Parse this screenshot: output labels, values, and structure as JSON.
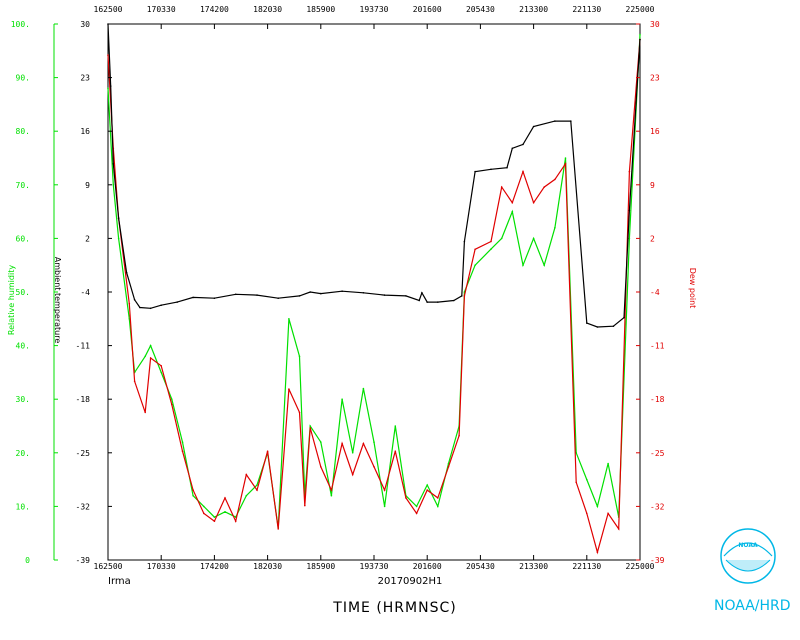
{
  "chart_data": {
    "type": "line",
    "title": "20170902H1",
    "storm_name": "Irma",
    "xlabel": "TIME (HRMNSC)",
    "x_ticks": [
      "162500",
      "170330",
      "174200",
      "182030",
      "185900",
      "193730",
      "201600",
      "205430",
      "213300",
      "221130",
      "225000"
    ],
    "xlim": [
      "162500",
      "225000"
    ],
    "axes": {
      "rh": {
        "label": "Relative humidity",
        "color": "#00e000",
        "ticks": [
          "0",
          "10.",
          "20.",
          "30.",
          "40.",
          "50.",
          "60.",
          "70.",
          "80.",
          "90.",
          "100."
        ],
        "ylim": [
          0,
          100
        ]
      },
      "temp": {
        "label": "Ambient temperature",
        "color": "#000000",
        "ticks": [
          "-39",
          "-32",
          "-25",
          "-18",
          "-11",
          "-4",
          "2",
          "9",
          "16",
          "23",
          "30"
        ],
        "ylim": [
          -39,
          30
        ]
      },
      "dew": {
        "label": "Dew point",
        "color": "#e00000",
        "ticks": [
          "-39",
          "-32",
          "-25",
          "-18",
          "-11",
          "-4",
          "2",
          "9",
          "16",
          "23",
          "30"
        ],
        "ylim": [
          -39,
          30
        ]
      }
    },
    "series": [
      {
        "name": "Ambient temperature",
        "color": "#000000",
        "x": [
          0.0,
          0.005,
          0.01,
          0.02,
          0.035,
          0.05,
          0.06,
          0.08,
          0.1,
          0.13,
          0.16,
          0.2,
          0.24,
          0.28,
          0.32,
          0.36,
          0.38,
          0.4,
          0.44,
          0.48,
          0.52,
          0.56,
          0.585,
          0.59,
          0.6,
          0.62,
          0.65,
          0.665,
          0.67,
          0.69,
          0.72,
          0.75,
          0.76,
          0.78,
          0.8,
          0.84,
          0.87,
          0.9,
          0.92,
          0.95,
          0.97,
          0.98,
          1.0
        ],
        "y": [
          30,
          22,
          12,
          5,
          -2,
          -5.5,
          -6.5,
          -6.6,
          -6.2,
          -5.8,
          -5.2,
          -5.3,
          -4.8,
          -4.9,
          -5.3,
          -5.0,
          -4.5,
          -4.7,
          -4.4,
          -4.6,
          -4.9,
          -5.0,
          -5.6,
          -4.6,
          -5.8,
          -5.8,
          -5.6,
          -5.0,
          2,
          11,
          11.3,
          11.5,
          14,
          14.5,
          16.8,
          17.5,
          17.5,
          -8.5,
          -9.0,
          -8.9,
          -7.8,
          6,
          28
        ]
      },
      {
        "name": "Dew point",
        "color": "#e00000",
        "x": [
          0.0,
          0.01,
          0.02,
          0.04,
          0.05,
          0.07,
          0.08,
          0.1,
          0.12,
          0.14,
          0.16,
          0.18,
          0.2,
          0.22,
          0.24,
          0.26,
          0.28,
          0.3,
          0.32,
          0.34,
          0.36,
          0.37,
          0.38,
          0.4,
          0.42,
          0.44,
          0.46,
          0.48,
          0.5,
          0.52,
          0.54,
          0.56,
          0.58,
          0.6,
          0.62,
          0.64,
          0.66,
          0.67,
          0.69,
          0.72,
          0.74,
          0.76,
          0.78,
          0.8,
          0.82,
          0.84,
          0.86,
          0.88,
          0.9,
          0.92,
          0.94,
          0.96,
          0.98,
          1.0
        ],
        "y": [
          26,
          14,
          5,
          -6,
          -16,
          -20,
          -13,
          -14,
          -19,
          -25,
          -30,
          -33,
          -34,
          -31,
          -34,
          -28,
          -30,
          -25,
          -35,
          -17,
          -20,
          -32,
          -22,
          -27,
          -30,
          -24,
          -28,
          -24,
          -27,
          -30,
          -25,
          -31,
          -33,
          -30,
          -31,
          -27,
          -23,
          -5,
          1,
          2,
          9,
          7,
          11,
          7,
          9,
          10,
          12,
          -29,
          -33,
          -38,
          -33,
          -35,
          11,
          28
        ]
      },
      {
        "name": "Relative humidity",
        "color": "#00e000",
        "x": [
          0.0,
          0.01,
          0.02,
          0.04,
          0.05,
          0.07,
          0.08,
          0.1,
          0.12,
          0.14,
          0.16,
          0.18,
          0.2,
          0.22,
          0.24,
          0.26,
          0.28,
          0.3,
          0.32,
          0.34,
          0.36,
          0.37,
          0.38,
          0.4,
          0.42,
          0.44,
          0.46,
          0.48,
          0.5,
          0.52,
          0.54,
          0.56,
          0.58,
          0.6,
          0.62,
          0.64,
          0.66,
          0.67,
          0.69,
          0.72,
          0.74,
          0.76,
          0.78,
          0.8,
          0.82,
          0.84,
          0.86,
          0.88,
          0.9,
          0.92,
          0.94,
          0.96,
          0.98,
          1.0
        ],
        "y": [
          88,
          70,
          60,
          45,
          35,
          38,
          40,
          35,
          30,
          22,
          12,
          10,
          8,
          9,
          8,
          12,
          14,
          20,
          6,
          45,
          38,
          12,
          25,
          22,
          12,
          30,
          20,
          32,
          22,
          10,
          25,
          12,
          10,
          14,
          10,
          18,
          25,
          50,
          55,
          58,
          60,
          65,
          55,
          60,
          55,
          62,
          75,
          20,
          15,
          10,
          18,
          8,
          60,
          98
        ]
      }
    ]
  },
  "logo": {
    "text": "NOAA/HRD",
    "badge_text": "NOAA"
  },
  "colors": {
    "rh": "#00e000",
    "temp": "#000000",
    "dew": "#e00000",
    "logo": "#00b7e6"
  }
}
